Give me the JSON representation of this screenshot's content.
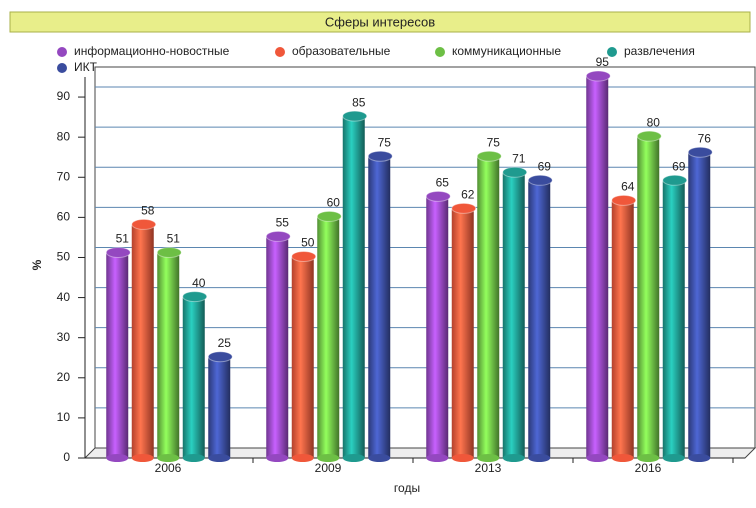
{
  "chart_data": {
    "type": "bar",
    "title": "Сферы интересов",
    "x_label": "годы",
    "y_label": "%",
    "categories": [
      "2006",
      "2009",
      "2013",
      "2016"
    ],
    "series": [
      {
        "name": "информационно-новостные",
        "color": "#9448c0",
        "values": [
          51,
          55,
          65,
          95
        ]
      },
      {
        "name": "образовательные",
        "color": "#f0573a",
        "values": [
          58,
          50,
          62,
          64
        ]
      },
      {
        "name": "коммуникационные",
        "color": "#6dbf45",
        "values": [
          51,
          60,
          75,
          80
        ]
      },
      {
        "name": "развлечения",
        "color": "#1f9a8f",
        "values": [
          40,
          85,
          71,
          69
        ]
      },
      {
        "name": "ИКТ",
        "color": "#3a4c9e",
        "values": [
          25,
          75,
          69,
          76
        ]
      }
    ],
    "ylim": [
      0,
      95
    ],
    "yticks": [
      0,
      10,
      20,
      30,
      40,
      50,
      60,
      70,
      80,
      90
    ],
    "grid": true,
    "legend": "top"
  }
}
